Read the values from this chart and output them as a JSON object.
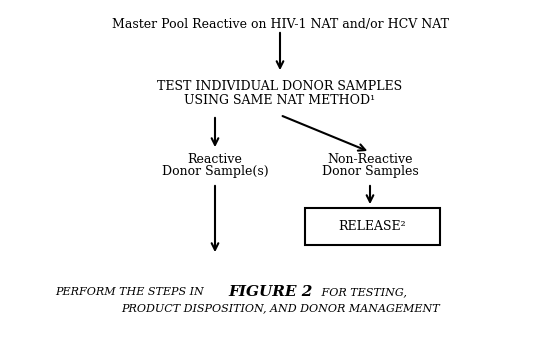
{
  "bg_color": "#ffffff",
  "top_text": "Master Pool Reactive on HIV-1 NAT and/or HCV NAT",
  "box1_line1": "TEST INDIVIDUAL DONOR SAMPLES",
  "box1_line2": "USING SAME NAT METHOD¹",
  "left_label_line1": "Reactive",
  "left_label_line2": "Donor Sample(s)",
  "right_label_line1": "Non-Reactive",
  "right_label_line2": "Donor Samples",
  "release_text": "RELEASE²",
  "bottom_part1": "PERFORM THE STEPS IN ",
  "bottom_fig": "FIGURE 2",
  "bottom_part2": " FOR TESTING,",
  "bottom_line2": "PRODUCT DISPOSITION, AND DONOR MANAGEMENT"
}
